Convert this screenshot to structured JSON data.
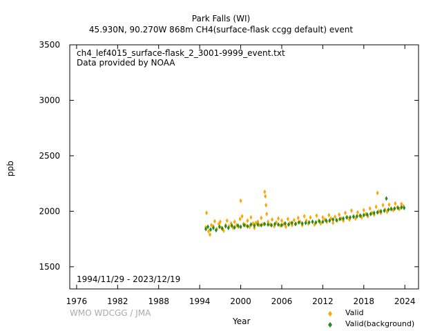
{
  "header": {
    "site": "Park Falls (WI)",
    "subtitle": "45.930N, 90.270W 868m    CH4(surface-flask ccgg default) event"
  },
  "file_info": {
    "filename": "ch4_lef4015_surface-flask_2_3001-9999_event.txt",
    "provider": "Data provided by NOAA"
  },
  "period": "1994/11/29 - 2023/12/19",
  "credit": "WMO WDCGG / JMA",
  "colors": {
    "valid": "#ffa500",
    "background": "#228b22",
    "axis": "#000000"
  },
  "chart_data": {
    "type": "scatter",
    "xlabel": "Year",
    "ylabel": "ppb",
    "xlim": [
      1975,
      2026
    ],
    "ylim": [
      1300,
      3500
    ],
    "xticks": [
      1976,
      1982,
      1988,
      1994,
      2000,
      2006,
      2012,
      2018,
      2024
    ],
    "yticks": [
      1500,
      2000,
      2500,
      3000,
      3500
    ],
    "grid": false,
    "legend_position": "bottom-right",
    "series": [
      {
        "name": "Valid",
        "color": "#ffa500",
        "marker": "diamond",
        "points": [
          [
            1994.9,
            1855
          ],
          [
            1995.0,
            1985
          ],
          [
            1995.3,
            1820
          ],
          [
            1995.5,
            1790
          ],
          [
            1995.7,
            1875
          ],
          [
            1996.0,
            1865
          ],
          [
            1996.2,
            1910
          ],
          [
            1996.5,
            1840
          ],
          [
            1996.8,
            1885
          ],
          [
            1997.0,
            1905
          ],
          [
            1997.2,
            1850
          ],
          [
            1997.5,
            1825
          ],
          [
            1997.8,
            1875
          ],
          [
            1998.0,
            1915
          ],
          [
            1998.3,
            1865
          ],
          [
            1998.6,
            1890
          ],
          [
            1998.9,
            1850
          ],
          [
            1999.1,
            1905
          ],
          [
            1999.4,
            1875
          ],
          [
            1999.7,
            1860
          ],
          [
            1999.9,
            1930
          ],
          [
            2000.0,
            2095
          ],
          [
            2000.2,
            1955
          ],
          [
            2000.4,
            1885
          ],
          [
            2000.7,
            1875
          ],
          [
            2001.0,
            1915
          ],
          [
            2001.3,
            1860
          ],
          [
            2001.5,
            1945
          ],
          [
            2001.8,
            1890
          ],
          [
            2002.0,
            1850
          ],
          [
            2002.2,
            1895
          ],
          [
            2002.5,
            1905
          ],
          [
            2002.7,
            1875
          ],
          [
            2003.0,
            1940
          ],
          [
            2003.3,
            1885
          ],
          [
            2003.5,
            2175
          ],
          [
            2003.6,
            2135
          ],
          [
            2003.7,
            2055
          ],
          [
            2003.8,
            1975
          ],
          [
            2004.0,
            1905
          ],
          [
            2004.3,
            1880
          ],
          [
            2004.6,
            1925
          ],
          [
            2004.9,
            1865
          ],
          [
            2005.2,
            1900
          ],
          [
            2005.5,
            1935
          ],
          [
            2005.8,
            1870
          ],
          [
            2006.0,
            1915
          ],
          [
            2006.3,
            1885
          ],
          [
            2006.6,
            1860
          ],
          [
            2006.9,
            1930
          ],
          [
            2007.2,
            1895
          ],
          [
            2007.5,
            1875
          ],
          [
            2007.8,
            1920
          ],
          [
            2008.1,
            1890
          ],
          [
            2008.4,
            1940
          ],
          [
            2008.7,
            1905
          ],
          [
            2009.0,
            1875
          ],
          [
            2009.3,
            1955
          ],
          [
            2009.6,
            1915
          ],
          [
            2009.9,
            1890
          ],
          [
            2010.2,
            1945
          ],
          [
            2010.5,
            1905
          ],
          [
            2010.8,
            1880
          ],
          [
            2011.1,
            1960
          ],
          [
            2011.4,
            1915
          ],
          [
            2011.7,
            1890
          ],
          [
            2012.0,
            1945
          ],
          [
            2012.3,
            1925
          ],
          [
            2012.6,
            1905
          ],
          [
            2012.9,
            1965
          ],
          [
            2013.2,
            1935
          ],
          [
            2013.5,
            1895
          ],
          [
            2013.8,
            1950
          ],
          [
            2014.1,
            1915
          ],
          [
            2014.4,
            1970
          ],
          [
            2014.7,
            1935
          ],
          [
            2015.0,
            1915
          ],
          [
            2015.3,
            1985
          ],
          [
            2015.6,
            1945
          ],
          [
            2015.9,
            1925
          ],
          [
            2016.2,
            2005
          ],
          [
            2016.5,
            1955
          ],
          [
            2016.8,
            1935
          ],
          [
            2017.1,
            1990
          ],
          [
            2017.4,
            1960
          ],
          [
            2017.7,
            1945
          ],
          [
            2018.0,
            2010
          ],
          [
            2018.3,
            1975
          ],
          [
            2018.6,
            1955
          ],
          [
            2018.9,
            2025
          ],
          [
            2019.2,
            1985
          ],
          [
            2019.5,
            1970
          ],
          [
            2019.8,
            2040
          ],
          [
            2020.0,
            2165
          ],
          [
            2020.2,
            2000
          ],
          [
            2020.5,
            1985
          ],
          [
            2020.8,
            2055
          ],
          [
            2021.1,
            2015
          ],
          [
            2021.4,
            1995
          ],
          [
            2021.7,
            2060
          ],
          [
            2022.0,
            2025
          ],
          [
            2022.3,
            2010
          ],
          [
            2022.6,
            2070
          ],
          [
            2022.9,
            2035
          ],
          [
            2023.2,
            2020
          ],
          [
            2023.5,
            2065
          ],
          [
            2023.8,
            2045
          ]
        ]
      },
      {
        "name": "Valid(background)",
        "color": "#228b22",
        "marker": "diamond",
        "points": [
          [
            1994.9,
            1840
          ],
          [
            1995.2,
            1860
          ],
          [
            1995.6,
            1835
          ],
          [
            1996.0,
            1850
          ],
          [
            1996.4,
            1830
          ],
          [
            1996.9,
            1860
          ],
          [
            1997.3,
            1845
          ],
          [
            1997.8,
            1865
          ],
          [
            1998.2,
            1850
          ],
          [
            1998.7,
            1870
          ],
          [
            1999.1,
            1855
          ],
          [
            1999.6,
            1870
          ],
          [
            2000.0,
            1860
          ],
          [
            2000.5,
            1875
          ],
          [
            2001.0,
            1865
          ],
          [
            2001.5,
            1880
          ],
          [
            2002.0,
            1870
          ],
          [
            2002.5,
            1880
          ],
          [
            2003.0,
            1875
          ],
          [
            2003.5,
            1885
          ],
          [
            2004.0,
            1880
          ],
          [
            2004.5,
            1875
          ],
          [
            2005.0,
            1885
          ],
          [
            2005.5,
            1880
          ],
          [
            2006.0,
            1875
          ],
          [
            2006.5,
            1890
          ],
          [
            2007.0,
            1880
          ],
          [
            2007.5,
            1895
          ],
          [
            2008.0,
            1885
          ],
          [
            2008.5,
            1900
          ],
          [
            2009.0,
            1890
          ],
          [
            2009.5,
            1895
          ],
          [
            2010.0,
            1900
          ],
          [
            2010.5,
            1905
          ],
          [
            2011.0,
            1900
          ],
          [
            2011.5,
            1910
          ],
          [
            2012.0,
            1905
          ],
          [
            2012.5,
            1915
          ],
          [
            2013.0,
            1915
          ],
          [
            2013.5,
            1925
          ],
          [
            2014.0,
            1920
          ],
          [
            2014.5,
            1930
          ],
          [
            2015.0,
            1935
          ],
          [
            2015.5,
            1945
          ],
          [
            2016.0,
            1945
          ],
          [
            2016.5,
            1950
          ],
          [
            2017.0,
            1955
          ],
          [
            2017.5,
            1960
          ],
          [
            2018.0,
            1965
          ],
          [
            2018.5,
            1970
          ],
          [
            2019.0,
            1975
          ],
          [
            2019.5,
            1985
          ],
          [
            2020.0,
            1990
          ],
          [
            2020.5,
            2000
          ],
          [
            2021.0,
            2005
          ],
          [
            2021.3,
            2115
          ],
          [
            2021.6,
            2015
          ],
          [
            2022.0,
            2020
          ],
          [
            2022.5,
            2025
          ],
          [
            2023.0,
            2030
          ],
          [
            2023.5,
            2035
          ],
          [
            2023.9,
            2030
          ]
        ]
      }
    ]
  }
}
